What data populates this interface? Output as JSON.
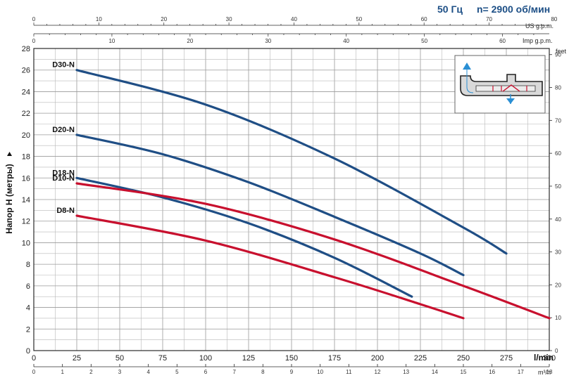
{
  "header": {
    "frequency": "50 Гц",
    "speed": "n= 2900 об/мин"
  },
  "colors": {
    "blue_series": "#1f4e85",
    "red_series": "#c8102e",
    "header": "#1d4f86"
  },
  "icon": "pump-impeller-cross-section-icon",
  "chart_data": {
    "type": "line",
    "ylabel": "Напор H (метры)",
    "ylim": [
      0,
      28
    ],
    "y_ticks": [
      0,
      2,
      4,
      6,
      8,
      10,
      12,
      14,
      16,
      18,
      20,
      22,
      24,
      26,
      28
    ],
    "xlabel_unit": "l/min",
    "xlim": [
      0,
      300
    ],
    "x_ticks": [
      0,
      25,
      50,
      75,
      100,
      125,
      150,
      175,
      200,
      225,
      250,
      275,
      300
    ],
    "grid": true,
    "secondary_axes": {
      "bottom_m3h": {
        "unit": "m³/h",
        "ticks": [
          0,
          1,
          2,
          3,
          4,
          5,
          6,
          7,
          8,
          9,
          10,
          11,
          12,
          13,
          14,
          15,
          16,
          17,
          18
        ]
      },
      "top_us_gpm": {
        "unit": "US g.p.m.",
        "ticks": [
          0,
          10,
          20,
          30,
          40,
          50,
          60,
          70,
          80
        ]
      },
      "top_imp_gpm": {
        "unit": "Imp g.p.m.",
        "ticks": [
          0,
          10,
          20,
          30,
          40,
          50,
          60
        ]
      },
      "right_feet": {
        "unit": "feet",
        "ticks": [
          0,
          10,
          20,
          30,
          40,
          50,
          60,
          70,
          80,
          90
        ]
      }
    },
    "series": [
      {
        "name": "D30-N",
        "color": "blue",
        "x": [
          25,
          100,
          175,
          250,
          275
        ],
        "y": [
          26,
          22.8,
          17.8,
          11.4,
          9
        ]
      },
      {
        "name": "D20-N",
        "color": "blue",
        "x": [
          25,
          75,
          125,
          175,
          225,
          250
        ],
        "y": [
          20,
          18.2,
          15.6,
          12.4,
          9,
          7
        ]
      },
      {
        "name": "D18-N",
        "color": "blue",
        "x": [
          25,
          75,
          125,
          175,
          220
        ],
        "y": [
          16,
          14.2,
          11.8,
          8.6,
          5
        ]
      },
      {
        "name": "D10-N",
        "color": "red",
        "x": [
          25,
          100,
          175,
          250,
          300
        ],
        "y": [
          15.5,
          13.6,
          10.3,
          6,
          3
        ]
      },
      {
        "name": "D8-N",
        "color": "red",
        "x": [
          25,
          100,
          175,
          225,
          250
        ],
        "y": [
          12.5,
          10.2,
          6.8,
          4.3,
          3
        ]
      }
    ]
  }
}
